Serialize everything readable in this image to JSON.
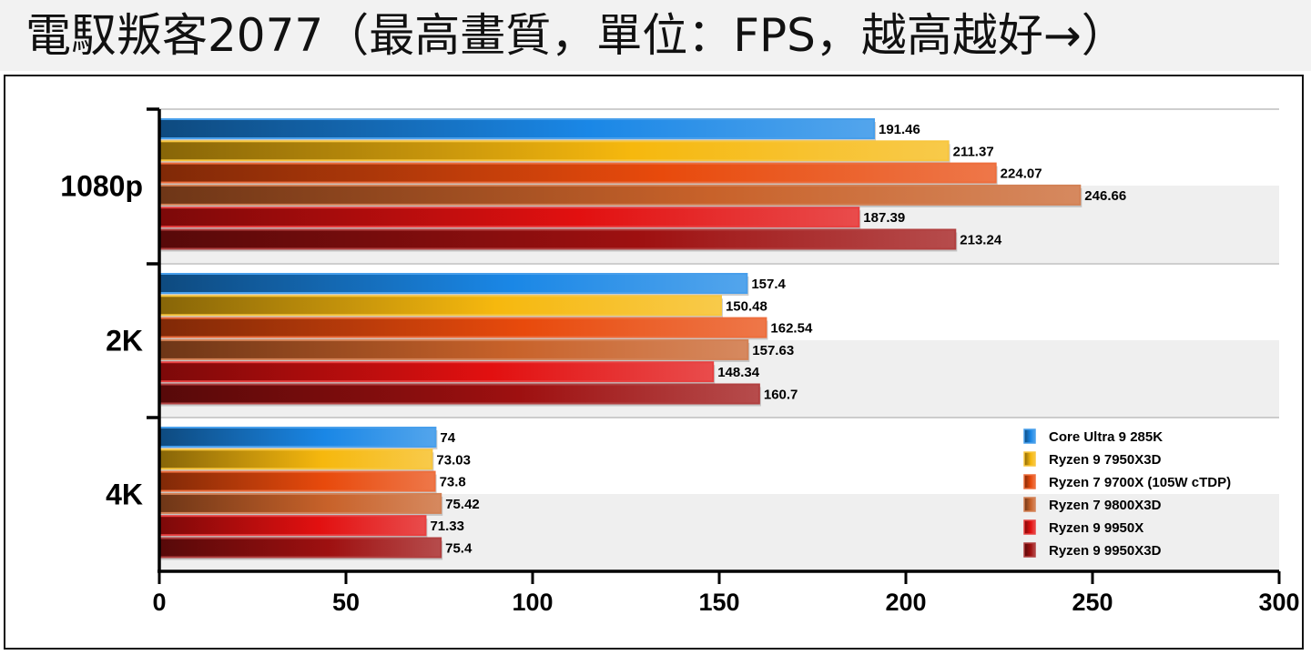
{
  "chart_data": {
    "type": "bar",
    "orientation": "horizontal",
    "title": "電馭叛客2077（最高畫質，單位：FPS，越高越好→）",
    "categories": [
      "1080p",
      "2K",
      "4K"
    ],
    "series": [
      {
        "name": "Core Ultra 9 285K",
        "values": [
          191.46,
          157.4,
          74
        ],
        "color": "#1a87e6"
      },
      {
        "name": "Ryzen 9 7950X3D",
        "values": [
          211.37,
          150.48,
          73.03
        ],
        "color": "#f6b80e"
      },
      {
        "name": "Ryzen 7 9700X (105W cTDP)",
        "values": [
          224.07,
          162.54,
          73.8
        ],
        "color": "#e84a0c"
      },
      {
        "name": "Ryzen 7 9800X3D",
        "values": [
          246.66,
          157.63,
          75.42
        ],
        "color": "#c8622a"
      },
      {
        "name": "Ryzen 9 9950X",
        "values": [
          187.39,
          148.34,
          71.33
        ],
        "color": "#e21010"
      },
      {
        "name": "Ryzen 9 9950X3D",
        "values": [
          213.24,
          160.7,
          75.4
        ],
        "color": "#9e1010"
      }
    ],
    "value_labels": [
      [
        "191.46",
        "211.37",
        "224.07",
        "246.66",
        "187.39",
        "213.24"
      ],
      [
        "157.4",
        "150.48",
        "162.54",
        "157.63",
        "148.34",
        "160.7"
      ],
      [
        "74",
        "73.03",
        "73.8",
        "75.42",
        "71.33",
        "75.4"
      ]
    ],
    "xlim": [
      0,
      300
    ],
    "xticks": [
      "0",
      "50",
      "100",
      "150",
      "200",
      "250",
      "300"
    ],
    "xlabel": "",
    "ylabel": "",
    "grid": false,
    "legend_position": "bottom-right"
  }
}
